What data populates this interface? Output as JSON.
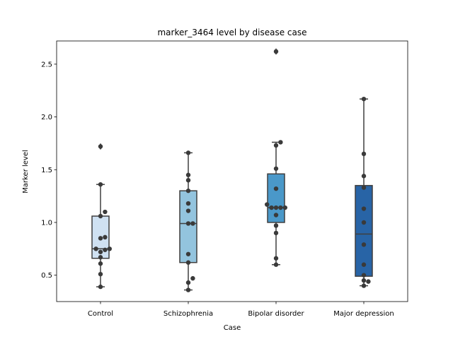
{
  "chart_data": {
    "type": "box",
    "title": "marker_3464 level by disease case",
    "xlabel": "Case",
    "ylabel": "Marker level",
    "ylim": [
      0.25,
      2.72
    ],
    "yticks": [
      0.5,
      1.0,
      1.5,
      2.0,
      2.5
    ],
    "ytick_labels": [
      "0.5",
      "1.0",
      "1.5",
      "2.0",
      "2.5"
    ],
    "grid": false,
    "categories": [
      "Control",
      "Schizophrenia",
      "Bipolar disorder",
      "Major depression"
    ],
    "colors": [
      "#cfe1f2",
      "#93c4de",
      "#4a98c9",
      "#2864a6"
    ],
    "boxes": [
      {
        "whisker_low": 0.39,
        "q1": 0.66,
        "median": 0.75,
        "q3": 1.06,
        "whisker_high": 1.36,
        "outliers": [
          1.72
        ]
      },
      {
        "whisker_low": 0.36,
        "q1": 0.62,
        "median": 0.99,
        "q3": 1.3,
        "whisker_high": 1.66,
        "outliers": []
      },
      {
        "whisker_low": 0.6,
        "q1": 1.0,
        "median": 1.14,
        "q3": 1.46,
        "whisker_high": 1.76,
        "outliers": [
          2.62
        ]
      },
      {
        "whisker_low": 0.4,
        "q1": 0.49,
        "median": 0.89,
        "q3": 1.35,
        "whisker_high": 2.17,
        "outliers": []
      }
    ],
    "points": [
      [
        0.39,
        0.51,
        0.61,
        0.67,
        0.72,
        0.74,
        0.75,
        0.75,
        0.85,
        0.86,
        1.06,
        1.1,
        1.36,
        1.72
      ],
      [
        0.36,
        0.43,
        0.47,
        0.62,
        0.7,
        0.99,
        0.99,
        1.11,
        1.18,
        1.3,
        1.4,
        1.45,
        1.66
      ],
      [
        0.6,
        0.66,
        0.9,
        0.97,
        1.07,
        1.14,
        1.14,
        1.14,
        1.14,
        1.17,
        1.32,
        1.51,
        1.73,
        1.76,
        2.62
      ],
      [
        0.4,
        0.44,
        0.45,
        0.5,
        0.6,
        0.79,
        1.0,
        1.13,
        1.33,
        1.44,
        1.65,
        2.17
      ]
    ]
  }
}
